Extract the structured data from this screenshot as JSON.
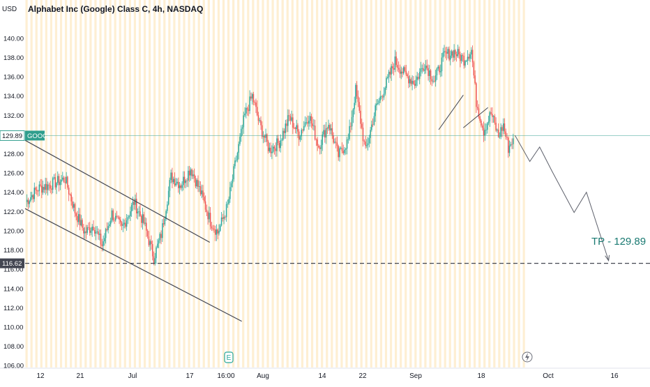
{
  "header": {
    "title": "Alphabet Inc (Google) Class C, 4h, NASDAQ",
    "currency": "USD"
  },
  "price_axis": {
    "ticks": [
      "140.00",
      "138.00",
      "136.00",
      "134.00",
      "132.00",
      "130.00",
      "128.00",
      "126.00",
      "124.00",
      "122.00",
      "120.00",
      "118.00",
      "116.00",
      "114.00",
      "112.00",
      "110.00",
      "108.00",
      "106.00"
    ],
    "last_price_label": "129.89",
    "symbol_label": "GOOG",
    "target_price_label": "116.62"
  },
  "time_axis": {
    "labels": [
      "12",
      "21",
      "Jul",
      "17",
      "16:00",
      "Aug",
      "14",
      "22",
      "Sep",
      "18",
      "Oct",
      "16"
    ]
  },
  "annotations": {
    "tp_text": "TP - 129.89",
    "earnings_marker": "E"
  },
  "colors": {
    "up": "#26a69a",
    "down": "#ef5350",
    "session_band": "#fde9c4",
    "pattern_line": "#434651",
    "last_price_line": "#2f9e8d",
    "target_line": "#434651",
    "projection": "#5d606b"
  },
  "chart_data": {
    "type": "candlestick",
    "title": "Alphabet Inc (Google) Class C, 4h, NASDAQ",
    "ylabel": "USD",
    "ylim": [
      105.8,
      141.8
    ],
    "y_ticks": [
      140,
      138,
      136,
      134,
      132,
      130,
      128,
      126,
      124,
      122,
      120,
      118,
      116,
      114,
      112,
      110,
      108,
      106
    ],
    "x_labels": [
      "12",
      "21",
      "Jul",
      "17",
      "16:00",
      "Aug",
      "14",
      "22",
      "Sep",
      "18",
      "Oct",
      "16"
    ],
    "last_price": 129.89,
    "horizontal_level": 116.62,
    "grid": false,
    "legend": "none",
    "close_path": [
      [
        0,
        123.0
      ],
      [
        10,
        124.4
      ],
      [
        20,
        124.8
      ],
      [
        32,
        125.4
      ],
      [
        40,
        122.0
      ],
      [
        48,
        119.8
      ],
      [
        55,
        120.6
      ],
      [
        62,
        118.5
      ],
      [
        70,
        121.8
      ],
      [
        78,
        120.2
      ],
      [
        88,
        123.0
      ],
      [
        96,
        120.8
      ],
      [
        104,
        117.2
      ],
      [
        110,
        119.6
      ],
      [
        118,
        125.6
      ],
      [
        126,
        124.8
      ],
      [
        134,
        126.5
      ],
      [
        142,
        124.0
      ],
      [
        150,
        121.0
      ],
      [
        156,
        119.8
      ],
      [
        164,
        122.6
      ],
      [
        170,
        126.8
      ],
      [
        178,
        132.0
      ],
      [
        184,
        134.0
      ],
      [
        190,
        131.0
      ],
      [
        198,
        128.4
      ],
      [
        206,
        129.2
      ],
      [
        214,
        131.8
      ],
      [
        222,
        130.0
      ],
      [
        230,
        132.0
      ],
      [
        238,
        128.8
      ],
      [
        246,
        131.2
      ],
      [
        254,
        127.8
      ],
      [
        262,
        129.4
      ],
      [
        268,
        134.6
      ],
      [
        276,
        128.2
      ],
      [
        284,
        132.6
      ],
      [
        292,
        135.0
      ],
      [
        300,
        137.6
      ],
      [
        308,
        136.2
      ],
      [
        316,
        135.4
      ],
      [
        324,
        137.4
      ],
      [
        332,
        135.6
      ],
      [
        340,
        138.2
      ],
      [
        348,
        138.6
      ],
      [
        356,
        137.8
      ],
      [
        362,
        138.8
      ],
      [
        366,
        133.4
      ],
      [
        372,
        130.4
      ],
      [
        378,
        132.2
      ],
      [
        384,
        129.8
      ],
      [
        388,
        131.0
      ],
      [
        392,
        128.6
      ],
      [
        396,
        129.6
      ]
    ],
    "patterns": {
      "descending_channel": [
        [
          0,
          129.4,
          150,
          118.8
        ],
        [
          0,
          122.3,
          176,
          110.6
        ]
      ],
      "flag_channel": [
        [
          336,
          130.5,
          356,
          134.1
        ],
        [
          356,
          130.7,
          376,
          132.8
        ]
      ],
      "projection": [
        [
          398,
          129.9
        ],
        [
          410,
          127.2
        ],
        [
          418,
          128.7
        ],
        [
          428,
          126.2
        ],
        [
          446,
          121.9
        ],
        [
          456,
          124.0
        ],
        [
          474,
          116.9
        ]
      ]
    }
  }
}
